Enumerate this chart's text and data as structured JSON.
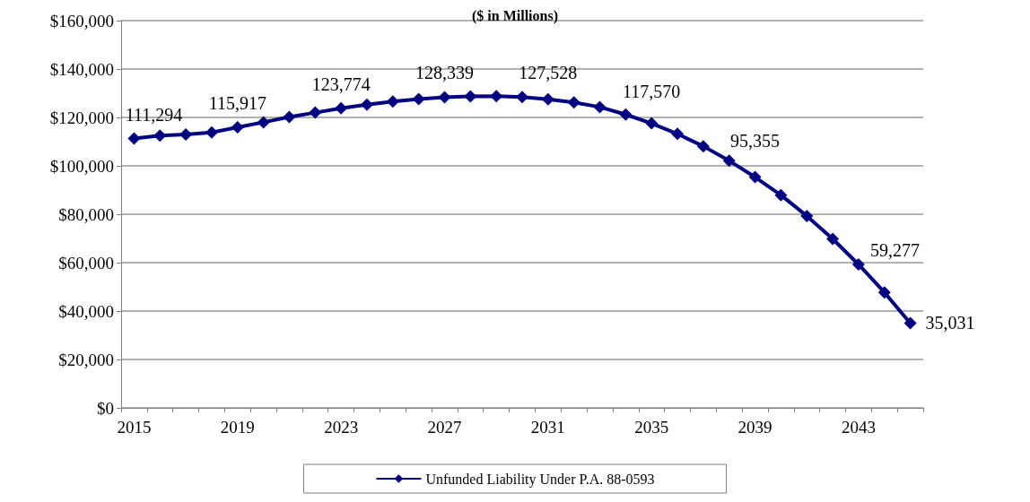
{
  "chart_data": {
    "type": "line",
    "title": "($ in Millions)",
    "categories": [
      "2015",
      null,
      null,
      null,
      "2019",
      null,
      null,
      null,
      "2023",
      null,
      null,
      null,
      "2027",
      null,
      null,
      null,
      "2031",
      null,
      null,
      null,
      "2035",
      null,
      null,
      null,
      "2039",
      null,
      null,
      null,
      "2043",
      null,
      null
    ],
    "series": [
      {
        "name": "Unfunded Liability Under P.A. 88-0593",
        "color": "#000080",
        "values": [
          111294,
          112500,
          113000,
          113800,
          115917,
          118000,
          120200,
          122000,
          123774,
          125300,
          126600,
          127600,
          128339,
          128700,
          128800,
          128400,
          127528,
          126200,
          124300,
          121200,
          117570,
          113200,
          108100,
          102100,
          95355,
          87900,
          79300,
          69800,
          59277,
          47700,
          35031
        ],
        "value_labels": [
          "111,294",
          null,
          null,
          null,
          "115,917",
          null,
          null,
          null,
          "123,774",
          null,
          null,
          null,
          "128,339",
          null,
          null,
          null,
          "127,528",
          null,
          null,
          null,
          "117,570",
          null,
          null,
          null,
          "95,355",
          null,
          null,
          null,
          "59,277",
          null,
          "35,031"
        ]
      }
    ],
    "ylim": [
      0,
      160000
    ],
    "yticks": [
      {
        "value": 0,
        "label": "$0"
      },
      {
        "value": 20000,
        "label": "$20,000"
      },
      {
        "value": 40000,
        "label": "$40,000"
      },
      {
        "value": 60000,
        "label": "$60,000"
      },
      {
        "value": 80000,
        "label": "$80,000"
      },
      {
        "value": 100000,
        "label": "$100,000"
      },
      {
        "value": 120000,
        "label": "$120,000"
      },
      {
        "value": 140000,
        "label": "$140,000"
      },
      {
        "value": 160000,
        "label": "$160,000"
      }
    ],
    "grid": "y",
    "legend": "bottom",
    "marker": "diamond",
    "line_style": "solid"
  }
}
